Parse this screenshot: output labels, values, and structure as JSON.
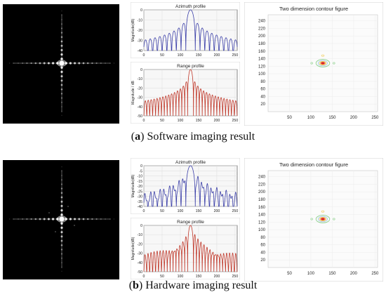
{
  "figures": [
    {
      "id": "a",
      "caption_prefix": "(",
      "caption_letter": "a",
      "caption_suffix": ") Software imaging result",
      "azimuth_title": "Azimuth profile",
      "range_title": "Range profile",
      "azimuth_ylabel": "Magnitude(dB)",
      "range_ylabel": "Magnitude / dB",
      "contour_title": "Two dimension contour figure"
    },
    {
      "id": "b",
      "caption_prefix": "(",
      "caption_letter": "b",
      "caption_suffix": ") Hardware imaging result",
      "azimuth_title": "Azimuth profile",
      "range_title": "Range profile",
      "azimuth_ylabel": "Magnitude(dB)",
      "range_ylabel": "Magnitude(dB)",
      "contour_title": "Two dimension contour figure"
    }
  ],
  "chart_data": [
    {
      "type": "line",
      "panel": "a-azimuth",
      "title": "Azimuth profile",
      "ylabel": "Magnitude(dB)",
      "xlim": [
        0,
        256
      ],
      "ylim": [
        -40,
        0
      ],
      "x_ticks": [
        0,
        50,
        100,
        150,
        200,
        250
      ],
      "y_ticks": [
        0,
        -10,
        -20,
        -30,
        -40
      ],
      "peak_x": 128,
      "color": "#3b3fa8",
      "grid": true
    },
    {
      "type": "line",
      "panel": "a-range",
      "title": "Range profile",
      "ylabel": "Magnitude / dB",
      "xlim": [
        0,
        256
      ],
      "ylim": [
        -50,
        0
      ],
      "x_ticks": [
        0,
        50,
        100,
        150,
        200,
        250
      ],
      "y_ticks": [
        0,
        -10,
        -20,
        -30,
        -40,
        -50
      ],
      "peak_x": 128,
      "color": "#c0392b",
      "grid": true
    },
    {
      "type": "heatmap",
      "panel": "a-contour",
      "title": "Two dimension contour figure",
      "xlim": [
        0,
        256
      ],
      "ylim": [
        0,
        256
      ],
      "x_ticks": [
        50,
        100,
        150,
        200,
        250
      ],
      "y_ticks": [
        20,
        40,
        60,
        80,
        100,
        120,
        140,
        160,
        180,
        200,
        220,
        240
      ],
      "peak": [
        128,
        128
      ]
    },
    {
      "type": "line",
      "panel": "b-azimuth",
      "title": "Azimuth profile",
      "ylabel": "Magnitude(dB)",
      "xlim": [
        0,
        256
      ],
      "ylim": [
        -40,
        0
      ],
      "x_ticks": [
        0,
        50,
        100,
        150,
        200,
        250
      ],
      "y_ticks": [
        0,
        -5,
        -10,
        -15,
        -20,
        -25,
        -30,
        -35,
        -40
      ],
      "peak_x": 128,
      "color": "#3b3fa8",
      "grid": true
    },
    {
      "type": "line",
      "panel": "b-range",
      "title": "Range profile",
      "ylabel": "Magnitude(dB)",
      "xlim": [
        0,
        256
      ],
      "ylim": [
        -50,
        0
      ],
      "x_ticks": [
        0,
        50,
        100,
        150,
        200,
        250
      ],
      "y_ticks": [
        0,
        -10,
        -20,
        -30,
        -40,
        -50
      ],
      "peak_x": 128,
      "color": "#c0392b",
      "grid": true
    },
    {
      "type": "heatmap",
      "panel": "b-contour",
      "title": "Two dimension contour figure",
      "xlim": [
        0,
        256
      ],
      "ylim": [
        0,
        256
      ],
      "x_ticks": [
        50,
        100,
        150,
        200,
        250
      ],
      "y_ticks": [
        20,
        40,
        60,
        80,
        100,
        120,
        140,
        160,
        180,
        200,
        220,
        240
      ],
      "peak": [
        128,
        128
      ]
    }
  ]
}
